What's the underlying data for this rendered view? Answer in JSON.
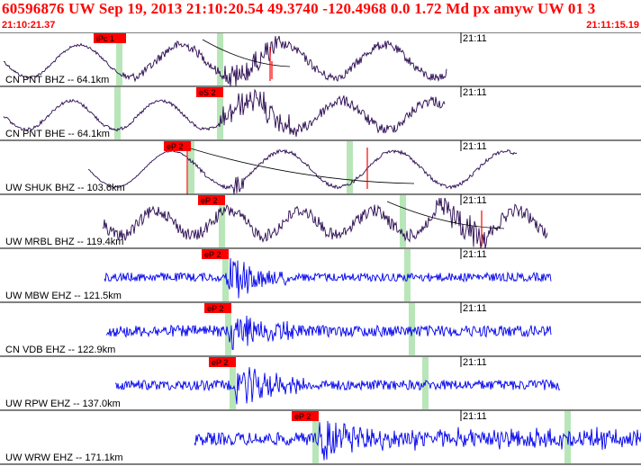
{
  "header": {
    "title": "60596876 UW Sep 19, 2013 21:10:20.54   49.3740 -120.4968  0.0 1.72 Md px amyw UW 01   3",
    "start_time": "21:10:21.37",
    "end_time": "21:11:15.19"
  },
  "colors": {
    "text_red": "#ff0000",
    "trace_dark": "#2a0a50",
    "trace_blue": "#0000ee",
    "pick_bg": "#ff0000",
    "marker_green": "#b8e6b8"
  },
  "traces": [
    {
      "label": "CN PNT BHZ -- 64.1km",
      "pick": "iPc 1",
      "tick": "21:11",
      "color": "#2a0a50"
    },
    {
      "label": "CN PNT BHE -- 64.1km",
      "pick": "eS 2",
      "tick": "21:11",
      "color": "#2a0a50"
    },
    {
      "label": "UW SHUK BHZ -- 103.6km",
      "pick": "eP 2",
      "tick": "21:11",
      "color": "#2a0a50"
    },
    {
      "label": "UW MRBL BHZ -- 119.4km",
      "pick": "eP 2",
      "tick": "21:11",
      "color": "#2a0a50"
    },
    {
      "label": "UW MBW EHZ -- 121.5km",
      "pick": "eP 2",
      "tick": "21:11",
      "color": "#0000ee"
    },
    {
      "label": "CN VDB EHZ -- 122.9km",
      "pick": "eP 2",
      "tick": "21:11",
      "color": "#0000ee"
    },
    {
      "label": "UW RPW EHZ -- 137.0km",
      "pick": "eP 2",
      "tick": "21:11",
      "color": "#0000ee"
    },
    {
      "label": "UW WRW EHZ -- 171.1km",
      "pick": "eP 2",
      "tick": "21:11",
      "color": "#0000ee"
    }
  ]
}
